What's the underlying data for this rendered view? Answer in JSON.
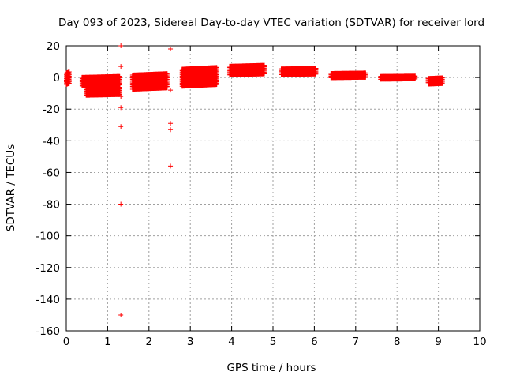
{
  "chart_data": {
    "type": "scatter",
    "title": "Day 093 of 2023, Sidereal Day-to-day VTEC variation (SDTVAR) for receiver lord",
    "xlabel": "GPS time / hours",
    "ylabel": "SDTVAR / TECUs",
    "xlim": [
      0,
      10
    ],
    "ylim": [
      -160,
      20
    ],
    "xticks": [
      "0",
      "1",
      "2",
      "3",
      "4",
      "5",
      "6",
      "7",
      "8",
      "9",
      "10"
    ],
    "yticks": [
      "20",
      "0",
      "-20",
      "-40",
      "-60",
      "-80",
      "-100",
      "-120",
      "-140",
      "-160"
    ],
    "grid": true,
    "marker": "+",
    "color": "#ff0000",
    "bands": [
      {
        "x_start": 0.0,
        "x_end": 0.08,
        "y_low": -4,
        "y_high": 4
      },
      {
        "x_start": 0.38,
        "x_end": 1.3,
        "y_low": -5,
        "y_high": 1
      },
      {
        "x_start": 0.48,
        "x_end": 1.3,
        "y_low": -11,
        "y_high": -6
      },
      {
        "x_start": 1.6,
        "x_end": 2.45,
        "y_low": -7,
        "y_high": 2
      },
      {
        "x_start": 2.8,
        "x_end": 3.65,
        "y_low": -5,
        "y_high": 6
      },
      {
        "x_start": 3.95,
        "x_end": 4.8,
        "y_low": 2,
        "y_high": 8
      },
      {
        "x_start": 5.2,
        "x_end": 6.05,
        "y_low": 2,
        "y_high": 6
      },
      {
        "x_start": 6.4,
        "x_end": 7.25,
        "y_low": 0,
        "y_high": 3
      },
      {
        "x_start": 7.6,
        "x_end": 8.45,
        "y_low": -1,
        "y_high": 1
      },
      {
        "x_start": 8.75,
        "x_end": 9.1,
        "y_low": -4,
        "y_high": 0
      }
    ],
    "outliers": [
      {
        "x": 1.32,
        "y": 20
      },
      {
        "x": 1.32,
        "y": 7
      },
      {
        "x": 1.32,
        "y": -12
      },
      {
        "x": 1.32,
        "y": -19
      },
      {
        "x": 1.32,
        "y": -31
      },
      {
        "x": 1.32,
        "y": -80
      },
      {
        "x": 1.32,
        "y": -150
      },
      {
        "x": 2.52,
        "y": 18
      },
      {
        "x": 2.52,
        "y": -8
      },
      {
        "x": 2.52,
        "y": -29
      },
      {
        "x": 2.52,
        "y": -33
      },
      {
        "x": 2.52,
        "y": -56
      }
    ]
  }
}
